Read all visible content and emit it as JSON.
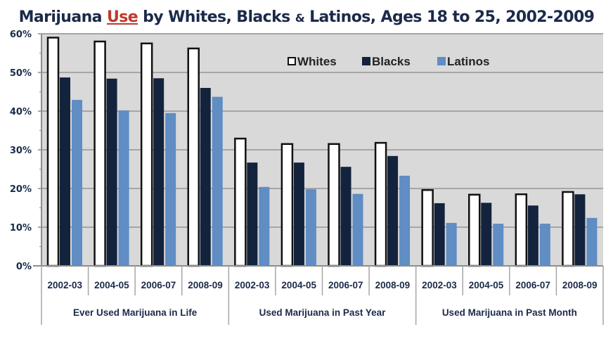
{
  "title": {
    "part1": "Marijuana ",
    "part2": "Use",
    "part3": " by Whites, Blacks ",
    "amp": "&",
    "part4": " Latinos, Ages 18 to 25, 2002-2009"
  },
  "chart_data": {
    "type": "bar",
    "title": "Marijuana Use by Whites, Blacks & Latinos, Ages 18 to 25, 2002-2009",
    "xlabel": "",
    "ylabel": "",
    "ylim": [
      0,
      60
    ],
    "yticks": [
      0,
      10,
      20,
      30,
      40,
      50,
      60
    ],
    "ytick_labels": [
      "0%",
      "10%",
      "20%",
      "30%",
      "40%",
      "50%",
      "60%"
    ],
    "grid": true,
    "legend_position": "top-right",
    "groups": [
      {
        "label": "Ever Used Marijuana in Life",
        "categories": [
          "2002-03",
          "2004-05",
          "2006-07",
          "2008-09"
        ]
      },
      {
        "label": "Used Marijuana in Past Year",
        "categories": [
          "2002-03",
          "2004-05",
          "2006-07",
          "2008-09"
        ]
      },
      {
        "label": "Used Marijuana in Past Month",
        "categories": [
          "2002-03",
          "2004-05",
          "2006-07",
          "2008-09"
        ]
      }
    ],
    "categories": [
      "2002-03",
      "2004-05",
      "2006-07",
      "2008-09",
      "2002-03",
      "2004-05",
      "2006-07",
      "2008-09",
      "2002-03",
      "2004-05",
      "2006-07",
      "2008-09"
    ],
    "series": [
      {
        "name": "Whites",
        "color": "#ffffff",
        "stroke": "#111111",
        "values": [
          59.0,
          58.0,
          57.5,
          56.2,
          32.9,
          31.5,
          31.5,
          31.8,
          19.6,
          18.4,
          18.5,
          19.1
        ]
      },
      {
        "name": "Blacks",
        "color": "#13233d",
        "stroke": "none",
        "values": [
          48.7,
          48.4,
          48.5,
          46.0,
          26.7,
          26.7,
          25.6,
          28.4,
          16.2,
          16.3,
          15.6,
          18.5
        ]
      },
      {
        "name": "Latinos",
        "color": "#5f8dc4",
        "stroke": "none",
        "values": [
          42.9,
          40.2,
          39.5,
          43.7,
          20.4,
          19.8,
          18.6,
          23.3,
          11.1,
          10.9,
          10.9,
          12.4
        ]
      }
    ]
  },
  "colors": {
    "plot_background": "#d9d9d9",
    "gridline": "#a6a6a6",
    "axis_text": "#1b2a4a",
    "title": "#1b2a4a",
    "title_accent": "#c0392b"
  }
}
